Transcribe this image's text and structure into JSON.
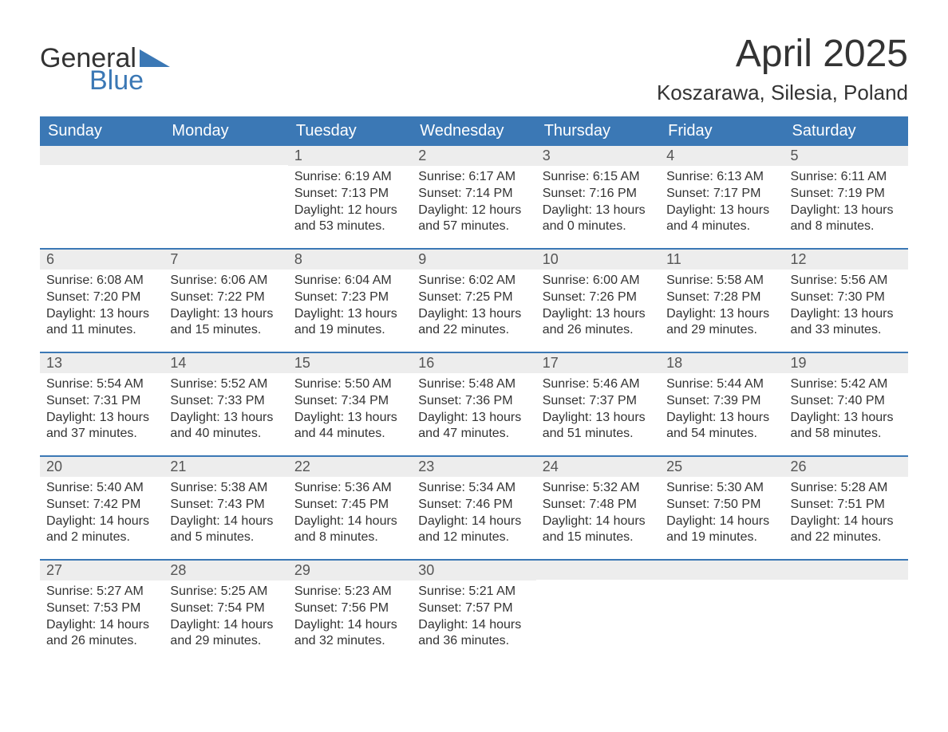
{
  "brand": {
    "word1": "General",
    "word2": "Blue",
    "accent_color": "#3b78b5",
    "text_color": "#333333"
  },
  "title": "April 2025",
  "location": "Koszarawa, Silesia, Poland",
  "colors": {
    "header_bg": "#3b78b5",
    "header_text": "#ffffff",
    "dayrow_bg": "#ededed",
    "body_bg": "#ffffff",
    "text": "#333333",
    "border": "#3b78b5"
  },
  "day_names": [
    "Sunday",
    "Monday",
    "Tuesday",
    "Wednesday",
    "Thursday",
    "Friday",
    "Saturday"
  ],
  "weeks": [
    [
      {
        "n": "",
        "sunrise": "",
        "sunset": "",
        "daylight": ""
      },
      {
        "n": "",
        "sunrise": "",
        "sunset": "",
        "daylight": ""
      },
      {
        "n": "1",
        "sunrise": "Sunrise: 6:19 AM",
        "sunset": "Sunset: 7:13 PM",
        "daylight": "Daylight: 12 hours and 53 minutes."
      },
      {
        "n": "2",
        "sunrise": "Sunrise: 6:17 AM",
        "sunset": "Sunset: 7:14 PM",
        "daylight": "Daylight: 12 hours and 57 minutes."
      },
      {
        "n": "3",
        "sunrise": "Sunrise: 6:15 AM",
        "sunset": "Sunset: 7:16 PM",
        "daylight": "Daylight: 13 hours and 0 minutes."
      },
      {
        "n": "4",
        "sunrise": "Sunrise: 6:13 AM",
        "sunset": "Sunset: 7:17 PM",
        "daylight": "Daylight: 13 hours and 4 minutes."
      },
      {
        "n": "5",
        "sunrise": "Sunrise: 6:11 AM",
        "sunset": "Sunset: 7:19 PM",
        "daylight": "Daylight: 13 hours and 8 minutes."
      }
    ],
    [
      {
        "n": "6",
        "sunrise": "Sunrise: 6:08 AM",
        "sunset": "Sunset: 7:20 PM",
        "daylight": "Daylight: 13 hours and 11 minutes."
      },
      {
        "n": "7",
        "sunrise": "Sunrise: 6:06 AM",
        "sunset": "Sunset: 7:22 PM",
        "daylight": "Daylight: 13 hours and 15 minutes."
      },
      {
        "n": "8",
        "sunrise": "Sunrise: 6:04 AM",
        "sunset": "Sunset: 7:23 PM",
        "daylight": "Daylight: 13 hours and 19 minutes."
      },
      {
        "n": "9",
        "sunrise": "Sunrise: 6:02 AM",
        "sunset": "Sunset: 7:25 PM",
        "daylight": "Daylight: 13 hours and 22 minutes."
      },
      {
        "n": "10",
        "sunrise": "Sunrise: 6:00 AM",
        "sunset": "Sunset: 7:26 PM",
        "daylight": "Daylight: 13 hours and 26 minutes."
      },
      {
        "n": "11",
        "sunrise": "Sunrise: 5:58 AM",
        "sunset": "Sunset: 7:28 PM",
        "daylight": "Daylight: 13 hours and 29 minutes."
      },
      {
        "n": "12",
        "sunrise": "Sunrise: 5:56 AM",
        "sunset": "Sunset: 7:30 PM",
        "daylight": "Daylight: 13 hours and 33 minutes."
      }
    ],
    [
      {
        "n": "13",
        "sunrise": "Sunrise: 5:54 AM",
        "sunset": "Sunset: 7:31 PM",
        "daylight": "Daylight: 13 hours and 37 minutes."
      },
      {
        "n": "14",
        "sunrise": "Sunrise: 5:52 AM",
        "sunset": "Sunset: 7:33 PM",
        "daylight": "Daylight: 13 hours and 40 minutes."
      },
      {
        "n": "15",
        "sunrise": "Sunrise: 5:50 AM",
        "sunset": "Sunset: 7:34 PM",
        "daylight": "Daylight: 13 hours and 44 minutes."
      },
      {
        "n": "16",
        "sunrise": "Sunrise: 5:48 AM",
        "sunset": "Sunset: 7:36 PM",
        "daylight": "Daylight: 13 hours and 47 minutes."
      },
      {
        "n": "17",
        "sunrise": "Sunrise: 5:46 AM",
        "sunset": "Sunset: 7:37 PM",
        "daylight": "Daylight: 13 hours and 51 minutes."
      },
      {
        "n": "18",
        "sunrise": "Sunrise: 5:44 AM",
        "sunset": "Sunset: 7:39 PM",
        "daylight": "Daylight: 13 hours and 54 minutes."
      },
      {
        "n": "19",
        "sunrise": "Sunrise: 5:42 AM",
        "sunset": "Sunset: 7:40 PM",
        "daylight": "Daylight: 13 hours and 58 minutes."
      }
    ],
    [
      {
        "n": "20",
        "sunrise": "Sunrise: 5:40 AM",
        "sunset": "Sunset: 7:42 PM",
        "daylight": "Daylight: 14 hours and 2 minutes."
      },
      {
        "n": "21",
        "sunrise": "Sunrise: 5:38 AM",
        "sunset": "Sunset: 7:43 PM",
        "daylight": "Daylight: 14 hours and 5 minutes."
      },
      {
        "n": "22",
        "sunrise": "Sunrise: 5:36 AM",
        "sunset": "Sunset: 7:45 PM",
        "daylight": "Daylight: 14 hours and 8 minutes."
      },
      {
        "n": "23",
        "sunrise": "Sunrise: 5:34 AM",
        "sunset": "Sunset: 7:46 PM",
        "daylight": "Daylight: 14 hours and 12 minutes."
      },
      {
        "n": "24",
        "sunrise": "Sunrise: 5:32 AM",
        "sunset": "Sunset: 7:48 PM",
        "daylight": "Daylight: 14 hours and 15 minutes."
      },
      {
        "n": "25",
        "sunrise": "Sunrise: 5:30 AM",
        "sunset": "Sunset: 7:50 PM",
        "daylight": "Daylight: 14 hours and 19 minutes."
      },
      {
        "n": "26",
        "sunrise": "Sunrise: 5:28 AM",
        "sunset": "Sunset: 7:51 PM",
        "daylight": "Daylight: 14 hours and 22 minutes."
      }
    ],
    [
      {
        "n": "27",
        "sunrise": "Sunrise: 5:27 AM",
        "sunset": "Sunset: 7:53 PM",
        "daylight": "Daylight: 14 hours and 26 minutes."
      },
      {
        "n": "28",
        "sunrise": "Sunrise: 5:25 AM",
        "sunset": "Sunset: 7:54 PM",
        "daylight": "Daylight: 14 hours and 29 minutes."
      },
      {
        "n": "29",
        "sunrise": "Sunrise: 5:23 AM",
        "sunset": "Sunset: 7:56 PM",
        "daylight": "Daylight: 14 hours and 32 minutes."
      },
      {
        "n": "30",
        "sunrise": "Sunrise: 5:21 AM",
        "sunset": "Sunset: 7:57 PM",
        "daylight": "Daylight: 14 hours and 36 minutes."
      },
      {
        "n": "",
        "sunrise": "",
        "sunset": "",
        "daylight": ""
      },
      {
        "n": "",
        "sunrise": "",
        "sunset": "",
        "daylight": ""
      },
      {
        "n": "",
        "sunrise": "",
        "sunset": "",
        "daylight": ""
      }
    ]
  ]
}
